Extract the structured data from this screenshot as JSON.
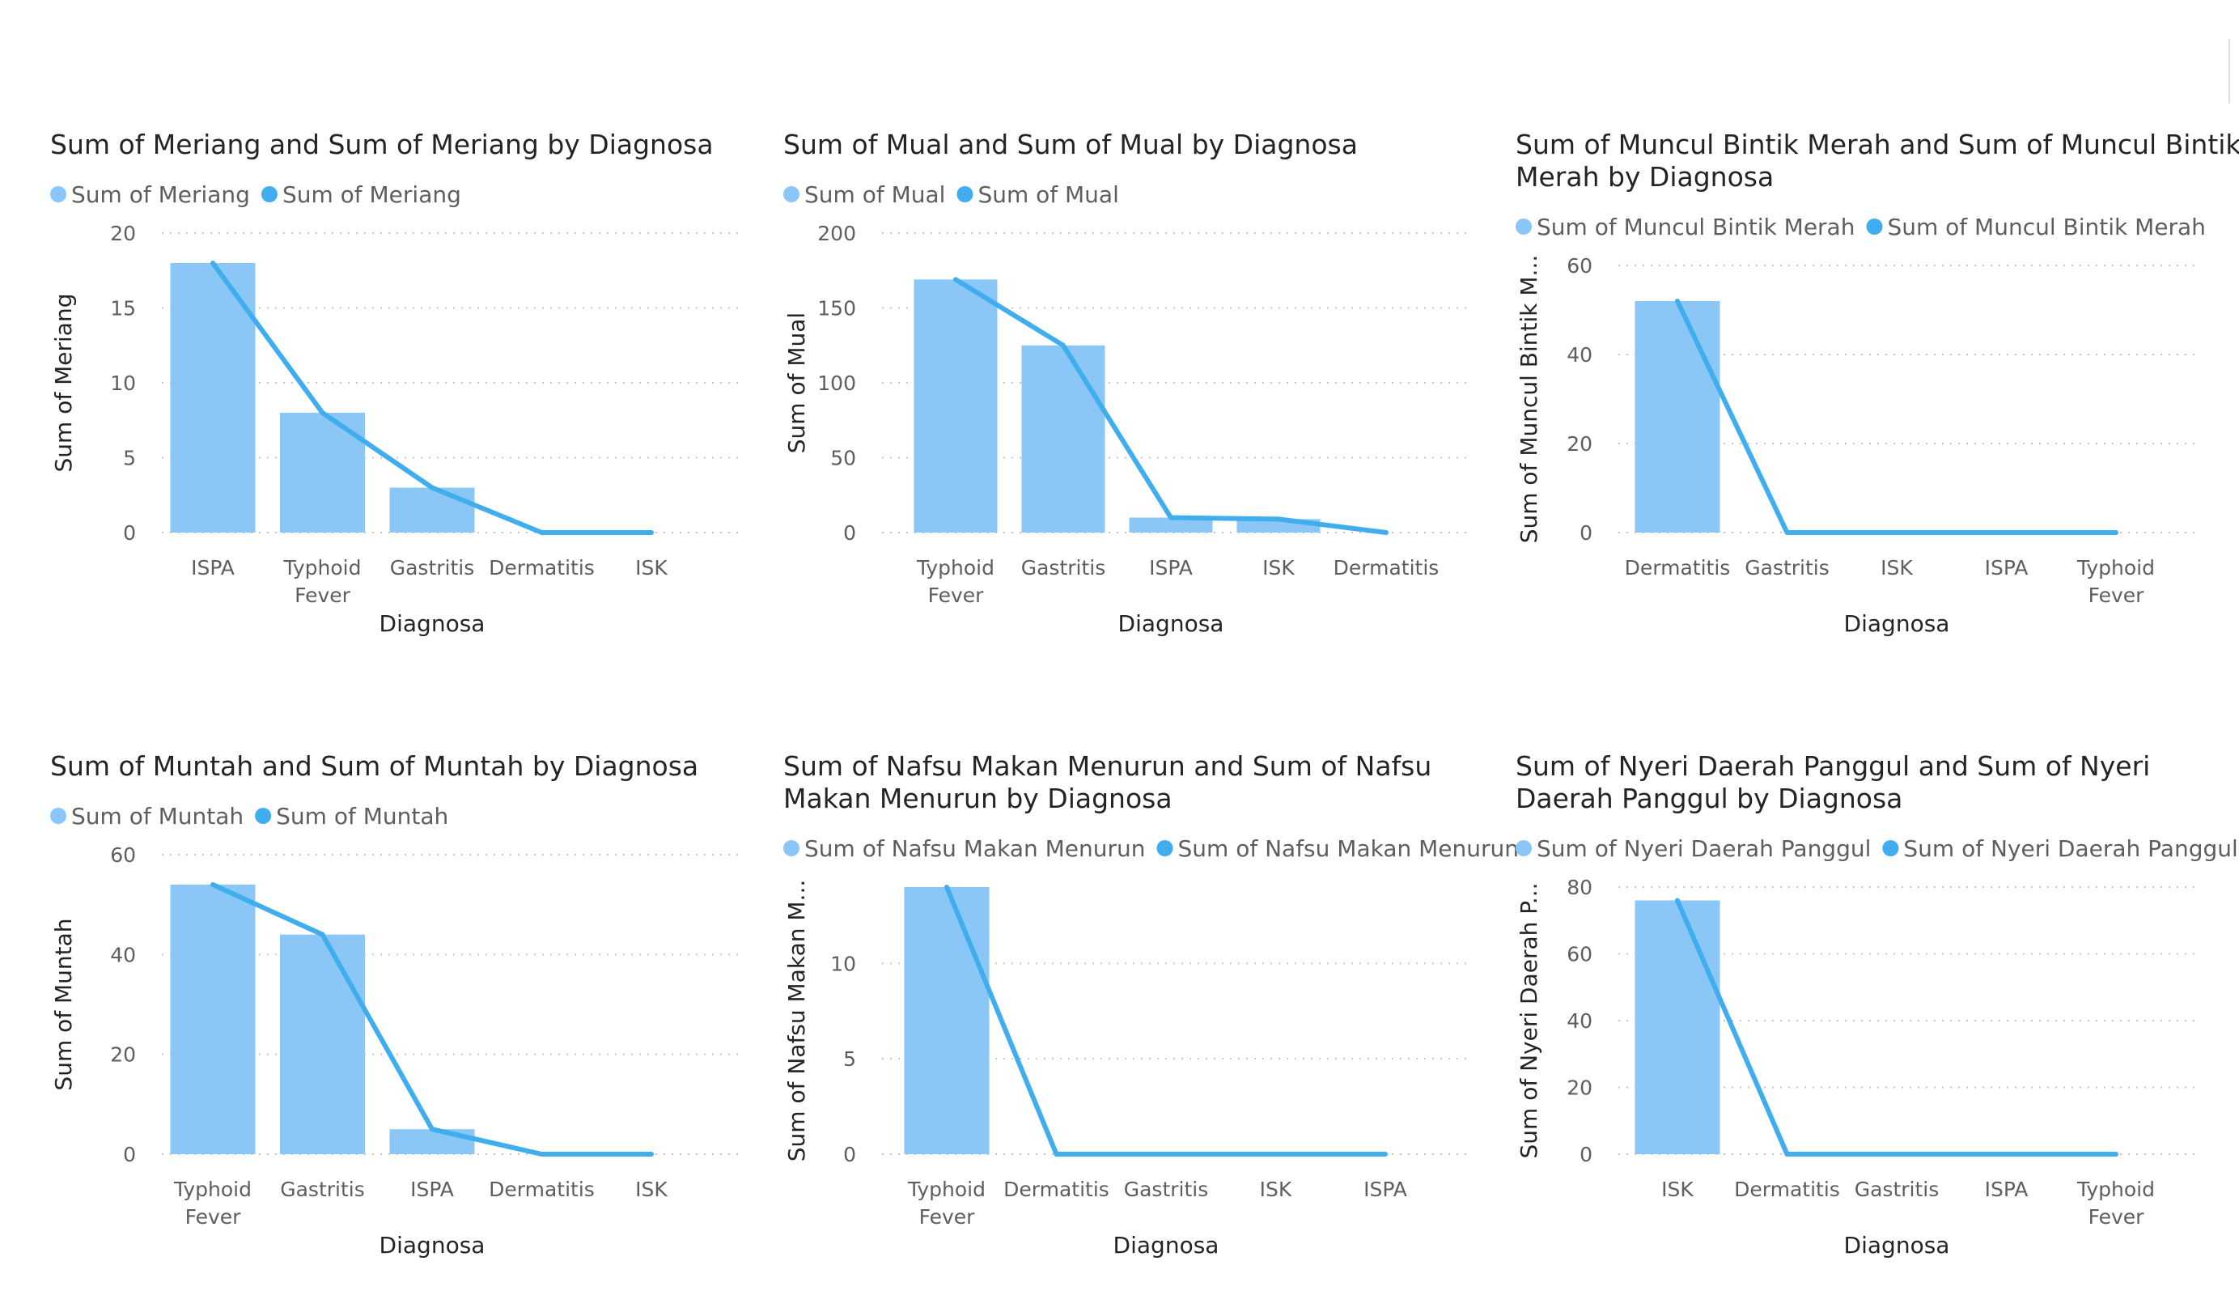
{
  "colors": {
    "bar": "#8ac7f6",
    "line": "#3fadee",
    "legend_bar": "#8ac7f6",
    "legend_line": "#3fadee"
  },
  "chart_data": [
    {
      "type": "bar",
      "title": [
        "Sum of Meriang and Sum of Meriang by Diagnosa"
      ],
      "legend": [
        "Sum of Meriang",
        "Sum of Meriang"
      ],
      "categories": [
        [
          "ISPA"
        ],
        [
          "Typhoid",
          "Fever"
        ],
        [
          "Gastritis"
        ],
        [
          "Dermatitis"
        ],
        [
          "ISK"
        ]
      ],
      "series": [
        {
          "name": "Sum of Meriang",
          "type": "bar",
          "values": [
            18,
            8,
            3,
            0,
            0
          ]
        },
        {
          "name": "Sum of Meriang",
          "type": "line",
          "values": [
            18,
            8,
            3,
            0,
            0
          ]
        }
      ],
      "xlabel": "Diagnosa",
      "ylabel": "Sum of Meriang",
      "ylim": [
        0,
        20
      ],
      "yticks": [
        0,
        5,
        10,
        15,
        20
      ],
      "grid": true,
      "legend_position": "top-left"
    },
    {
      "type": "bar",
      "title": [
        "Sum of Mual and Sum of Mual by Diagnosa"
      ],
      "legend": [
        "Sum of Mual",
        "Sum of Mual"
      ],
      "categories": [
        [
          "Typhoid",
          "Fever"
        ],
        [
          "Gastritis"
        ],
        [
          "ISPA"
        ],
        [
          "ISK"
        ],
        [
          "Dermatitis"
        ]
      ],
      "series": [
        {
          "name": "Sum of Mual",
          "type": "bar",
          "values": [
            169,
            125,
            10,
            9,
            0
          ]
        },
        {
          "name": "Sum of Mual",
          "type": "line",
          "values": [
            169,
            125,
            10,
            9,
            0
          ]
        }
      ],
      "xlabel": "Diagnosa",
      "ylabel": "Sum of Mual",
      "ylim": [
        0,
        200
      ],
      "yticks": [
        0,
        50,
        100,
        150,
        200
      ],
      "grid": true,
      "legend_position": "top-left"
    },
    {
      "type": "bar",
      "title": [
        "Sum of Muncul Bintik Merah and Sum of Muncul Bintik",
        "Merah by Diagnosa"
      ],
      "legend": [
        "Sum of Muncul Bintik Merah",
        "Sum of Muncul Bintik Merah"
      ],
      "categories": [
        [
          "Dermatitis"
        ],
        [
          "Gastritis"
        ],
        [
          "ISK"
        ],
        [
          "ISPA"
        ],
        [
          "Typhoid",
          "Fever"
        ]
      ],
      "series": [
        {
          "name": "Sum of Muncul Bintik Merah",
          "type": "bar",
          "values": [
            52,
            0,
            0,
            0,
            0
          ]
        },
        {
          "name": "Sum of Muncul Bintik Merah",
          "type": "line",
          "values": [
            52,
            0,
            0,
            0,
            0
          ]
        }
      ],
      "xlabel": "Diagnosa",
      "ylabel": "Sum of Muncul Bintik M...",
      "ylim": [
        0,
        60
      ],
      "yticks": [
        0,
        20,
        40,
        60
      ],
      "grid": true,
      "legend_position": "top-left"
    },
    {
      "type": "bar",
      "title": [
        "Sum of Muntah and Sum of Muntah by Diagnosa"
      ],
      "legend": [
        "Sum of Muntah",
        "Sum of Muntah"
      ],
      "categories": [
        [
          "Typhoid",
          "Fever"
        ],
        [
          "Gastritis"
        ],
        [
          "ISPA"
        ],
        [
          "Dermatitis"
        ],
        [
          "ISK"
        ]
      ],
      "series": [
        {
          "name": "Sum of Muntah",
          "type": "bar",
          "values": [
            54,
            44,
            5,
            0,
            0
          ]
        },
        {
          "name": "Sum of Muntah",
          "type": "line",
          "values": [
            54,
            44,
            5,
            0,
            0
          ]
        }
      ],
      "xlabel": "Diagnosa",
      "ylabel": "Sum of Muntah",
      "ylim": [
        0,
        60
      ],
      "yticks": [
        0,
        20,
        40,
        60
      ],
      "grid": true,
      "legend_position": "top-left"
    },
    {
      "type": "bar",
      "title": [
        "Sum of Nafsu Makan Menurun and Sum of Nafsu",
        "Makan Menurun by Diagnosa"
      ],
      "legend": [
        "Sum of Nafsu Makan Menurun",
        "Sum of Nafsu Makan Menurun"
      ],
      "categories": [
        [
          "Typhoid",
          "Fever"
        ],
        [
          "Dermatitis"
        ],
        [
          "Gastritis"
        ],
        [
          "ISK"
        ],
        [
          "ISPA"
        ]
      ],
      "series": [
        {
          "name": "Sum of Nafsu Makan Menurun",
          "type": "bar",
          "values": [
            14,
            0,
            0,
            0,
            0
          ]
        },
        {
          "name": "Sum of Nafsu Makan Menurun",
          "type": "line",
          "values": [
            14,
            0,
            0,
            0,
            0
          ]
        }
      ],
      "xlabel": "Diagnosa",
      "ylabel": "Sum of Nafsu Makan M...",
      "ylim": [
        0,
        14
      ],
      "yticks": [
        0,
        5,
        10
      ],
      "grid": true,
      "legend_position": "top-left"
    },
    {
      "type": "bar",
      "title": [
        "Sum of Nyeri Daerah Panggul and Sum of Nyeri",
        "Daerah Panggul by Diagnosa"
      ],
      "legend": [
        "Sum of Nyeri Daerah Panggul",
        "Sum of Nyeri Daerah Panggul"
      ],
      "categories": [
        [
          "ISK"
        ],
        [
          "Dermatitis"
        ],
        [
          "Gastritis"
        ],
        [
          "ISPA"
        ],
        [
          "Typhoid",
          "Fever"
        ]
      ],
      "series": [
        {
          "name": "Sum of Nyeri Daerah Panggul",
          "type": "bar",
          "values": [
            76,
            0,
            0,
            0,
            0
          ]
        },
        {
          "name": "Sum of Nyeri Daerah Panggul",
          "type": "line",
          "values": [
            76,
            0,
            0,
            0,
            0
          ]
        }
      ],
      "xlabel": "Diagnosa",
      "ylabel": "Sum of Nyeri Daerah P...",
      "ylim": [
        0,
        80
      ],
      "yticks": [
        0,
        20,
        40,
        60,
        80
      ],
      "grid": true,
      "legend_position": "top-left"
    }
  ]
}
